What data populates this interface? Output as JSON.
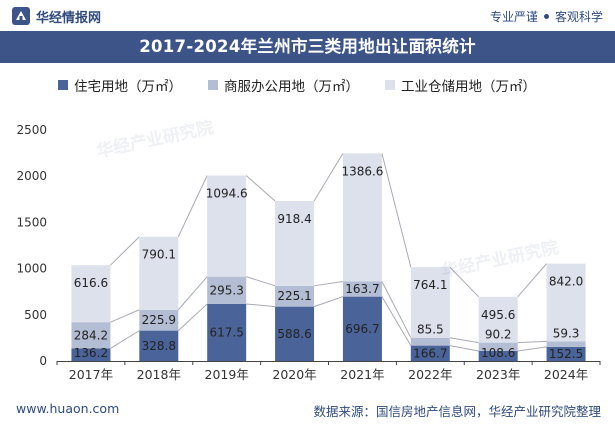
{
  "header": {
    "brand": "华经情报网",
    "tagline_left": "专业严谨",
    "tagline_right": "客观科学"
  },
  "title": "2017-2024年兰州市三类用地出让面积统计",
  "watermark": "华经产业研究院",
  "footer": {
    "url": "www.huaon.com",
    "source": "数据来源：国信房地产信息网，华经产业研究院整理"
  },
  "colors": {
    "residential": "#4a6499",
    "commercial": "#b3bdd3",
    "industrial": "#dde1ec",
    "title_bg": "#3d5488",
    "connector": "#a8aab4"
  },
  "chart_data": {
    "type": "bar",
    "stacked": true,
    "categories": [
      "2017年",
      "2018年",
      "2019年",
      "2020年",
      "2021年",
      "2022年",
      "2023年",
      "2024年"
    ],
    "series": [
      {
        "name": "住宅用地（万㎡）",
        "values": [
          136.2,
          328.8,
          617.5,
          588.6,
          696.7,
          166.7,
          108.6,
          152.5
        ]
      },
      {
        "name": "商服办公用地（万㎡）",
        "values": [
          284.2,
          225.9,
          295.3,
          225.1,
          163.7,
          85.5,
          90.2,
          59.3
        ]
      },
      {
        "name": "工业仓储用地（万㎡）",
        "values": [
          616.6,
          790.1,
          1094.6,
          918.4,
          1386.6,
          764.1,
          495.6,
          842.0
        ]
      }
    ],
    "ylim": [
      0,
      2500
    ],
    "yticks": [
      "0",
      "500",
      "1000",
      "1500",
      "2000",
      "2500"
    ],
    "data_labels": [
      [
        "136.2",
        "328.8",
        "617.5",
        "588.6",
        "696.7",
        "166.7",
        "108.6",
        "152.5"
      ],
      [
        "284.2",
        "225.9",
        "295.3",
        "225.1",
        "163.7",
        "85.5",
        "90.2",
        "59.3"
      ],
      [
        "616.6",
        "790.1",
        "1094.6",
        "918.4",
        "1386.6",
        "764.1",
        "495.6",
        "842.0"
      ]
    ],
    "legend_position": "top"
  }
}
